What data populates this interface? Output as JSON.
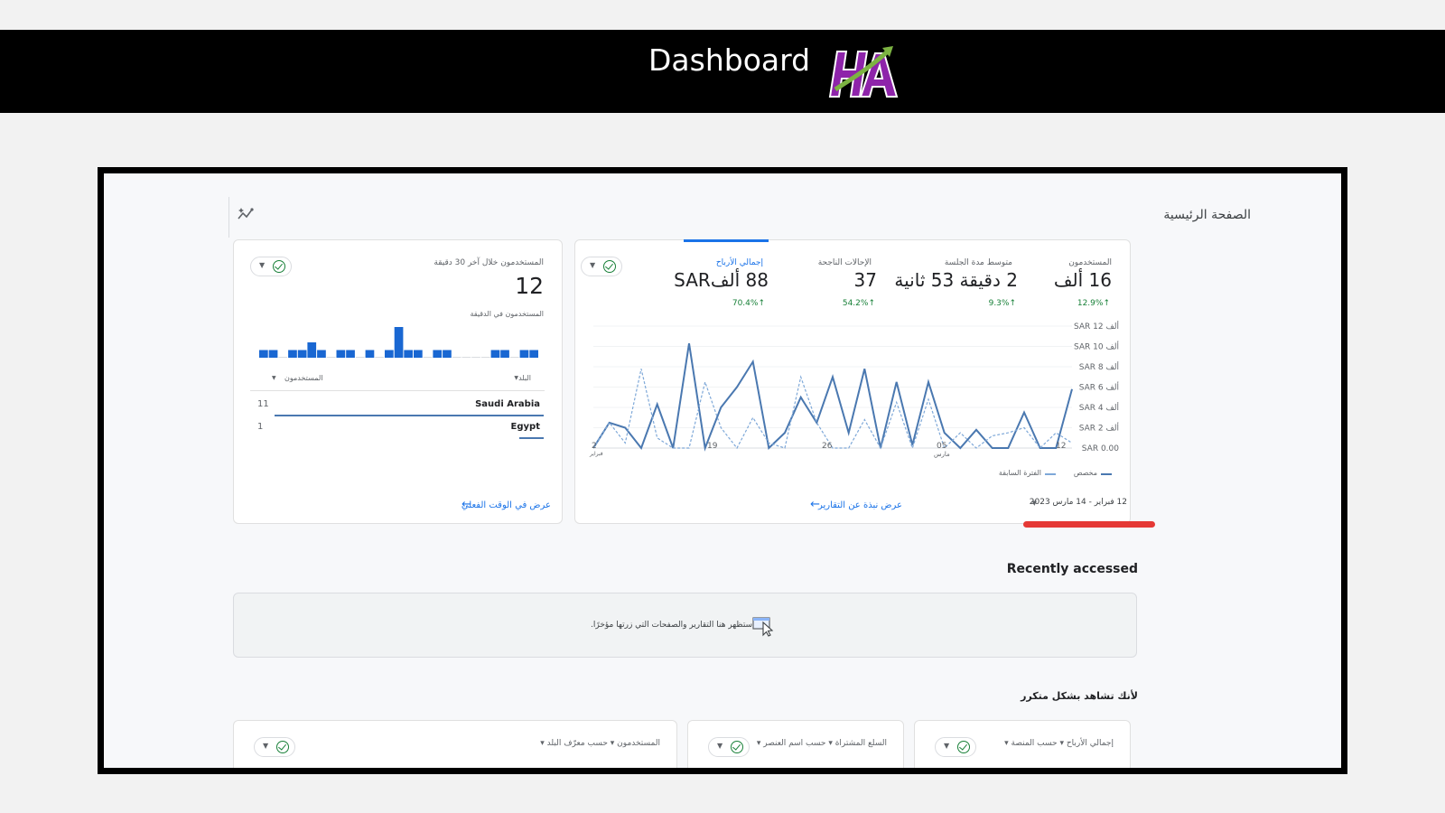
{
  "header": {
    "title": "Dashboard",
    "logo_text": "HA"
  },
  "page": {
    "title": "الصفحة الرئيسية"
  },
  "overview": {
    "metrics": [
      {
        "label": "المستخدمون",
        "value": "16 ألف",
        "delta": "12.9%↑"
      },
      {
        "label": "متوسط مدة الجلسة",
        "value": "2 دقيقة 53 ثانية",
        "delta": "9.3%↑"
      },
      {
        "label": "الإحالات الناجحة",
        "value": "37",
        "delta": "54.2%↑"
      },
      {
        "label": "إجمالي الأرباح",
        "value": "88 ألفSAR",
        "delta": "70.4%↑"
      }
    ],
    "legend": {
      "current": "مخصص",
      "previous": "الفترة السابقة"
    },
    "date_range": "12 فبراير - 14 مارس 2023",
    "link": "عرض نبذة عن التقارير",
    "month_labels": {
      "feb": "فبراير",
      "mar": "مارس"
    }
  },
  "chart_data": {
    "type": "line",
    "x_ticks": [
      "2",
      "19",
      "26",
      "05",
      "12"
    ],
    "y_ticks": [
      "SAR 0.00",
      "SAR ألف 2",
      "SAR ألف 4",
      "SAR ألف 6",
      "SAR ألف 8",
      "SAR ألف 10",
      "SAR ألف 12"
    ],
    "ylim": [
      0,
      12
    ],
    "series": [
      {
        "name": "مخصص",
        "style": "solid",
        "color": "#4a78b0",
        "values": [
          0,
          2.5,
          2,
          0,
          4.3,
          0,
          10.3,
          0,
          4,
          6,
          8.5,
          0,
          1.5,
          5,
          2.5,
          7,
          1.5,
          7.8,
          0,
          6.5,
          0.3,
          6.5,
          1.5,
          0,
          1.8,
          0,
          0,
          3.5,
          0,
          0,
          5.8
        ]
      },
      {
        "name": "الفترة السابقة",
        "style": "dashed",
        "color": "#7ea8d8",
        "values": [
          0,
          2.5,
          0.5,
          7.8,
          1,
          0,
          0,
          6.5,
          2,
          0,
          3,
          0.5,
          0,
          7,
          2.5,
          0,
          0,
          2.8,
          0,
          4.5,
          0,
          4.8,
          0,
          1.5,
          0,
          1.2,
          1.5,
          2,
          0,
          1.5,
          0.5
        ]
      }
    ]
  },
  "realtime": {
    "label": "المستخدمون خلال آخر 30 دقيقة",
    "value": "12",
    "sublabel": "المستخدمون في الدقيقة",
    "bars": [
      1,
      1,
      0,
      1,
      1,
      2,
      1,
      0,
      1,
      1,
      0,
      1,
      0,
      1,
      4,
      1,
      1,
      0,
      1,
      1,
      0,
      0,
      0,
      0,
      1,
      1,
      0,
      1,
      1
    ],
    "col_country": "البلد",
    "col_users": "المستخدمون",
    "rows": [
      {
        "country": "Saudi Arabia",
        "users": "11",
        "share": 1.0
      },
      {
        "country": "Egypt",
        "users": "1",
        "share": 0.09
      }
    ],
    "link": "عرض في الوقت الفعلي"
  },
  "recent": {
    "title": "Recently accessed",
    "empty_text": "ستظهر هنا التقارير والصفحات التي زرتها مؤخرًا."
  },
  "frequent": {
    "title": "لأنك تشاهد بشكل متكرر",
    "cards": [
      {
        "label": "إجمالي الأرباح ▾ حسب المنصة ▾"
      },
      {
        "label": "السلع المشتراة ▾ حسب اسم العنصر ▾"
      },
      {
        "label": "المستخدمون ▾ حسب معرّف البلد ▾"
      }
    ]
  },
  "colors": {
    "accent": "#1a73e8",
    "positive": "#188038",
    "bar": "#1967d2",
    "highlight": "#e53935"
  }
}
